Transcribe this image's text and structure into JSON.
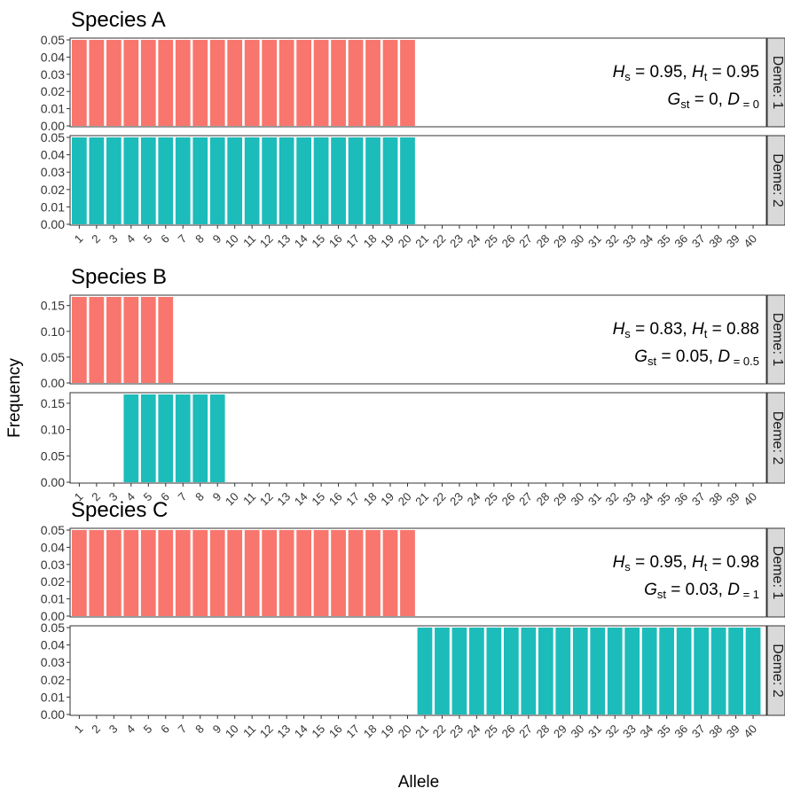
{
  "figure": {
    "ylabel": "Frequency",
    "xlabel": "Allele",
    "colors": {
      "deme1": "#F8766D",
      "deme2": "#1CBCBA",
      "strip": "#D9D9D9"
    }
  },
  "chart_data": [
    {
      "type": "bar",
      "title": "Species A",
      "xlabel": "Allele",
      "ylabel": "Frequency",
      "x_categories": [
        "1",
        "2",
        "3",
        "4",
        "5",
        "6",
        "7",
        "8",
        "9",
        "10",
        "11",
        "12",
        "13",
        "14",
        "15",
        "16",
        "17",
        "18",
        "19",
        "20",
        "21",
        "22",
        "23",
        "24",
        "25",
        "26",
        "27",
        "28",
        "29",
        "30",
        "31",
        "32",
        "33",
        "34",
        "35",
        "36",
        "37",
        "38",
        "39",
        "40"
      ],
      "yticks": [
        "0.00",
        "0.01",
        "0.02",
        "0.03",
        "0.04",
        "0.05"
      ],
      "ylim": [
        0,
        0.05
      ],
      "annotation": {
        "line1": [
          "H",
          "s",
          " = 0.95, ",
          "H",
          "t",
          " = 0.95"
        ],
        "line2": [
          "G",
          "st",
          " = 0, ",
          "D",
          " = 0"
        ]
      },
      "series": [
        {
          "name": "Deme: 1",
          "color": "#F8766D",
          "alleles": [
            1,
            2,
            3,
            4,
            5,
            6,
            7,
            8,
            9,
            10,
            11,
            12,
            13,
            14,
            15,
            16,
            17,
            18,
            19,
            20
          ],
          "value": 0.05
        },
        {
          "name": "Deme: 2",
          "color": "#1CBCBA",
          "alleles": [
            1,
            2,
            3,
            4,
            5,
            6,
            7,
            8,
            9,
            10,
            11,
            12,
            13,
            14,
            15,
            16,
            17,
            18,
            19,
            20
          ],
          "value": 0.05
        }
      ]
    },
    {
      "type": "bar",
      "title": "Species B",
      "xlabel": "Allele",
      "ylabel": "Frequency",
      "x_categories": [
        "1",
        "2",
        "3",
        "4",
        "5",
        "6",
        "7",
        "8",
        "9",
        "10",
        "11",
        "12",
        "13",
        "14",
        "15",
        "16",
        "17",
        "18",
        "19",
        "20",
        "21",
        "22",
        "23",
        "24",
        "25",
        "26",
        "27",
        "28",
        "29",
        "30",
        "31",
        "32",
        "33",
        "34",
        "35",
        "36",
        "37",
        "38",
        "39",
        "40"
      ],
      "yticks": [
        "0.00",
        "0.05",
        "0.10",
        "0.15"
      ],
      "ylim": [
        0,
        0.1667
      ],
      "annotation": {
        "line1": [
          "H",
          "s",
          " = 0.83, ",
          "H",
          "t",
          " = 0.88"
        ],
        "line2": [
          "G",
          "st",
          " = 0.05, ",
          "D",
          " = 0.5"
        ]
      },
      "series": [
        {
          "name": "Deme: 1",
          "color": "#F8766D",
          "alleles": [
            1,
            2,
            3,
            4,
            5,
            6
          ],
          "value": 0.1667
        },
        {
          "name": "Deme: 2",
          "color": "#1CBCBA",
          "alleles": [
            4,
            5,
            6,
            7,
            8,
            9
          ],
          "value": 0.1667
        }
      ]
    },
    {
      "type": "bar",
      "title": "Species C",
      "xlabel": "Allele",
      "ylabel": "Frequency",
      "x_categories": [
        "1",
        "2",
        "3",
        "4",
        "5",
        "6",
        "7",
        "8",
        "9",
        "10",
        "11",
        "12",
        "13",
        "14",
        "15",
        "16",
        "17",
        "18",
        "19",
        "20",
        "21",
        "22",
        "23",
        "24",
        "25",
        "26",
        "27",
        "28",
        "29",
        "30",
        "31",
        "32",
        "33",
        "34",
        "35",
        "36",
        "37",
        "38",
        "39",
        "40"
      ],
      "yticks": [
        "0.00",
        "0.01",
        "0.02",
        "0.03",
        "0.04",
        "0.05"
      ],
      "ylim": [
        0,
        0.05
      ],
      "annotation": {
        "line1": [
          "H",
          "s",
          " = 0.95, ",
          "H",
          "t",
          " = 0.98"
        ],
        "line2": [
          "G",
          "st",
          " = 0.03, ",
          "D",
          " = 1"
        ]
      },
      "series": [
        {
          "name": "Deme: 1",
          "color": "#F8766D",
          "alleles": [
            1,
            2,
            3,
            4,
            5,
            6,
            7,
            8,
            9,
            10,
            11,
            12,
            13,
            14,
            15,
            16,
            17,
            18,
            19,
            20
          ],
          "value": 0.05
        },
        {
          "name": "Deme: 2",
          "color": "#1CBCBA",
          "alleles": [
            21,
            22,
            23,
            24,
            25,
            26,
            27,
            28,
            29,
            30,
            31,
            32,
            33,
            34,
            35,
            36,
            37,
            38,
            39,
            40
          ],
          "value": 0.05
        }
      ]
    }
  ]
}
